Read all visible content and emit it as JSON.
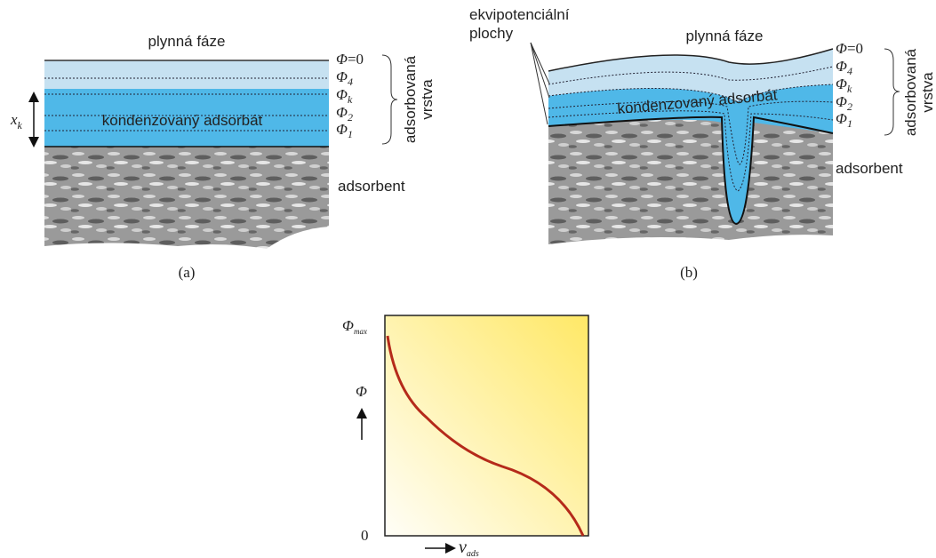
{
  "panel_a": {
    "gas_phase": "plynná fáze",
    "potentials": [
      {
        "symbol": "Φ",
        "rest": "=0"
      },
      {
        "symbol": "Φ",
        "sub": "4"
      },
      {
        "symbol": "Φ",
        "sub": "k"
      },
      {
        "symbol": "Φ",
        "sub": "2"
      },
      {
        "symbol": "Φ",
        "sub": "1"
      }
    ],
    "adsorbed_layer": [
      "adsorbovaná",
      "vrstva"
    ],
    "thickness": {
      "symbol": "x",
      "sub": "k"
    },
    "condensed": "kondenzovaný adsorbát",
    "adsorbent": "adsorbent",
    "caption": "(a)"
  },
  "panel_b": {
    "equipotential": [
      "ekvipotenciální",
      "plochy"
    ],
    "gas_phase": "plynná fáze",
    "potentials": [
      {
        "symbol": "Φ",
        "rest": "=0"
      },
      {
        "symbol": "Φ",
        "sub": "4"
      },
      {
        "symbol": "Φ",
        "sub": "k"
      },
      {
        "symbol": "Φ",
        "sub": "2"
      },
      {
        "symbol": "Φ",
        "sub": "1"
      }
    ],
    "adsorbed_layer": [
      "adsorbovaná",
      "vrstva"
    ],
    "condensed": "kondenzovaný adsorbát",
    "adsorbent": "adsorbent",
    "caption": "(b)"
  },
  "panel_c": {
    "y_max": {
      "symbol": "Φ",
      "sub": "max"
    },
    "y_axis": "Φ",
    "origin": "0",
    "x_axis": {
      "symbol": "v",
      "sub": "ads"
    }
  }
}
